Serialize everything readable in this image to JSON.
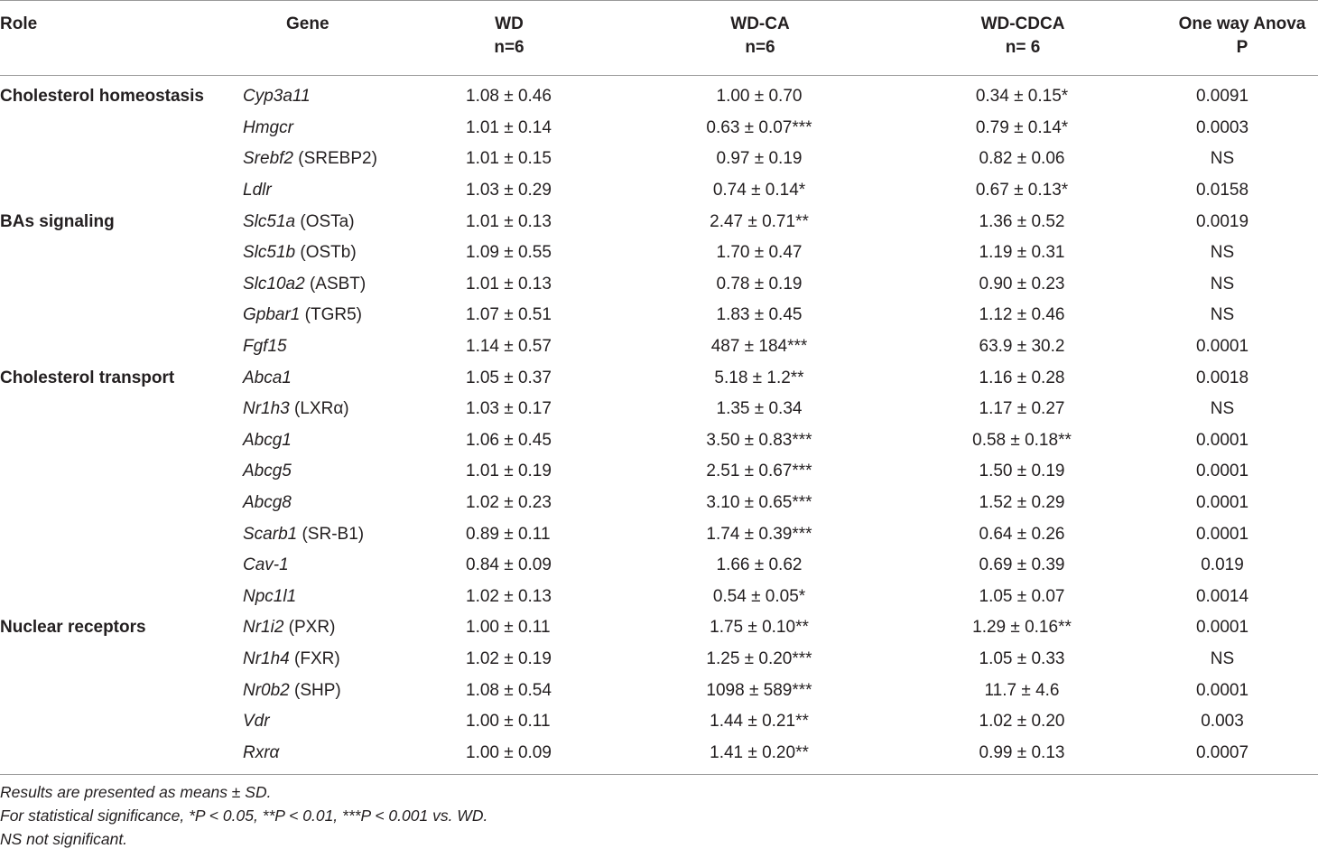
{
  "header": {
    "role": "Role",
    "gene": "Gene",
    "wd": [
      "WD",
      "n=6"
    ],
    "wd_ca": [
      "WD-CA",
      "n=6"
    ],
    "wd_cdca": [
      "WD-CDCA",
      "n= 6"
    ],
    "anova": [
      "One way Anova",
      "P"
    ]
  },
  "rows": [
    {
      "role": "Cholesterol homeostasis",
      "gene": "Cyp3a11",
      "alias": "",
      "wd": "1.08 ± 0.46",
      "ca": "1.00 ± 0.70",
      "cdca": "0.34 ± 0.15*",
      "p": "0.0091"
    },
    {
      "role": "",
      "gene": "Hmgcr",
      "alias": "",
      "wd": "1.01 ± 0.14",
      "ca": "0.63 ± 0.07***",
      "cdca": "0.79 ± 0.14*",
      "p": "0.0003"
    },
    {
      "role": "",
      "gene": "Srebf2",
      "alias": " (SREBP2)",
      "wd": "1.01 ± 0.15",
      "ca": "0.97 ± 0.19",
      "cdca": "0.82 ± 0.06",
      "p": "NS"
    },
    {
      "role": "",
      "gene": "Ldlr",
      "alias": "",
      "wd": "1.03 ± 0.29",
      "ca": "0.74 ± 0.14*",
      "cdca": "0.67 ± 0.13*",
      "p": "0.0158"
    },
    {
      "role": "BAs signaling",
      "gene": "Slc51a",
      "alias": " (OSTa)",
      "wd": "1.01 ± 0.13",
      "ca": "2.47 ± 0.71**",
      "cdca": "1.36 ± 0.52",
      "p": "0.0019"
    },
    {
      "role": "",
      "gene": "Slc51b",
      "alias": " (OSTb)",
      "wd": "1.09 ± 0.55",
      "ca": "1.70 ± 0.47",
      "cdca": "1.19 ± 0.31",
      "p": "NS"
    },
    {
      "role": "",
      "gene": "Slc10a2",
      "alias": " (ASBT)",
      "wd": "1.01 ± 0.13",
      "ca": "0.78 ± 0.19",
      "cdca": "0.90 ± 0.23",
      "p": "NS"
    },
    {
      "role": "",
      "gene": "Gpbar1",
      "alias": " (TGR5)",
      "wd": "1.07 ± 0.51",
      "ca": "1.83 ± 0.45",
      "cdca": "1.12 ± 0.46",
      "p": "NS"
    },
    {
      "role": "",
      "gene": "Fgf15",
      "alias": "",
      "wd": "1.14 ± 0.57",
      "ca": "487 ± 184***",
      "cdca": "63.9 ± 30.2",
      "p": "0.0001"
    },
    {
      "role": "Cholesterol transport",
      "gene": "Abca1",
      "alias": "",
      "wd": "1.05 ± 0.37",
      "ca": "5.18 ± 1.2**",
      "cdca": "1.16 ± 0.28",
      "p": "0.0018"
    },
    {
      "role": "",
      "gene": "Nr1h3",
      "alias": " (LXRα)",
      "wd": "1.03 ± 0.17",
      "ca": "1.35 ± 0.34",
      "cdca": "1.17 ± 0.27",
      "p": "NS"
    },
    {
      "role": "",
      "gene": "Abcg1",
      "alias": "",
      "wd": "1.06 ± 0.45",
      "ca": "3.50 ± 0.83***",
      "cdca": "0.58 ± 0.18**",
      "p": "0.0001"
    },
    {
      "role": "",
      "gene": "Abcg5",
      "alias": "",
      "wd": "1.01 ± 0.19",
      "ca": "2.51 ± 0.67***",
      "cdca": "1.50 ± 0.19",
      "p": "0.0001"
    },
    {
      "role": "",
      "gene": "Abcg8",
      "alias": "",
      "wd": "1.02 ± 0.23",
      "ca": "3.10 ± 0.65***",
      "cdca": "1.52 ± 0.29",
      "p": "0.0001"
    },
    {
      "role": "",
      "gene": "Scarb1",
      "alias": " (SR-B1)",
      "wd": "0.89 ± 0.11",
      "ca": "1.74 ± 0.39***",
      "cdca": "0.64 ± 0.26",
      "p": "0.0001"
    },
    {
      "role": "",
      "gene": "Cav-1",
      "alias": "",
      "wd": "0.84 ± 0.09",
      "ca": "1.66 ± 0.62",
      "cdca": "0.69 ± 0.39",
      "p": "0.019"
    },
    {
      "role": "",
      "gene": "Npc1l1",
      "alias": "",
      "wd": "1.02 ± 0.13",
      "ca": "0.54 ± 0.05*",
      "cdca": "1.05 ± 0.07",
      "p": "0.0014"
    },
    {
      "role": "Nuclear receptors",
      "gene": "Nr1i2",
      "alias": " (PXR)",
      "wd": "1.00 ± 0.11",
      "ca": "1.75 ± 0.10**",
      "cdca": "1.29 ± 0.16**",
      "p": "0.0001"
    },
    {
      "role": "",
      "gene": "Nr1h4",
      "alias": " (FXR)",
      "wd": "1.02 ± 0.19",
      "ca": "1.25 ± 0.20***",
      "cdca": "1.05 ± 0.33",
      "p": "NS"
    },
    {
      "role": "",
      "gene": "Nr0b2",
      "alias": " (SHP)",
      "wd": "1.08 ± 0.54",
      "ca": "1098 ± 589***",
      "cdca": "11.7 ± 4.6",
      "p": "0.0001"
    },
    {
      "role": "",
      "gene": "Vdr",
      "alias": "",
      "wd": "1.00 ± 0.11",
      "ca": "1.44 ± 0.21**",
      "cdca": "1.02 ± 0.20",
      "p": "0.003"
    },
    {
      "role": "",
      "gene": "Rxrα",
      "alias": "",
      "wd": "1.00 ± 0.09",
      "ca": "1.41 ± 0.20**",
      "cdca": "0.99 ± 0.13",
      "p": "0.0007"
    }
  ],
  "notes": [
    "Results are presented as means ± SD.",
    "For statistical significance, *P < 0.05, **P < 0.01, ***P < 0.001 vs. WD.",
    "NS not significant."
  ]
}
